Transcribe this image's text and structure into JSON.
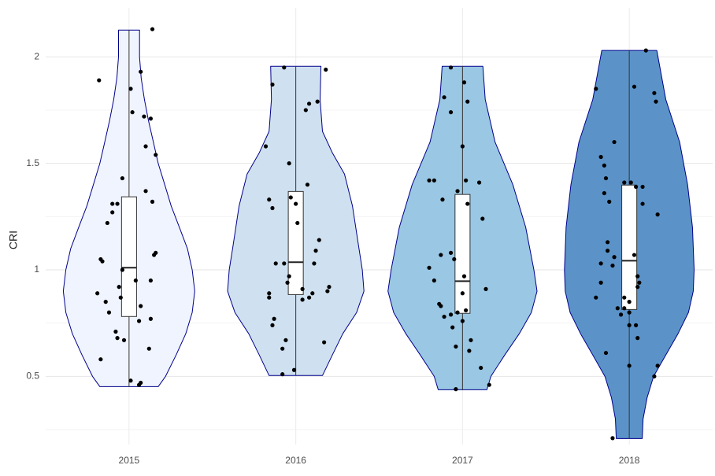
{
  "chart_data": {
    "type": "violin",
    "y_label": "CRI",
    "categories": [
      "2015",
      "2016",
      "2017",
      "2018"
    ],
    "ylim": [
      0.18,
      2.23
    ],
    "yticks": [
      0.5,
      1.0,
      1.5,
      2.0
    ],
    "minor_yticks": [
      0.25,
      0.75,
      1.25,
      1.75
    ],
    "grid": true,
    "outline_color": "#00008b",
    "box_fill": "#ffffff",
    "box_width": 0.09,
    "point_color": "#000000",
    "groups": [
      {
        "fill": "#f0f4fe",
        "violin": {
          "y": [
            0.452,
            0.5,
            0.6,
            0.7,
            0.8,
            0.9,
            1.0,
            1.1,
            1.2,
            1.3,
            1.4,
            1.5,
            1.6,
            1.7,
            1.8,
            1.9,
            2.0,
            2.126
          ],
          "width": [
            0.175,
            0.219,
            0.282,
            0.34,
            0.379,
            0.394,
            0.379,
            0.35,
            0.302,
            0.253,
            0.214,
            0.175,
            0.146,
            0.117,
            0.092,
            0.073,
            0.063,
            0.063
          ]
        },
        "box": {
          "min": 0.452,
          "q1": 0.781,
          "median": 1.01,
          "q3": 1.343,
          "max": 2.126
        },
        "points": {
          "x": [
            -0.18,
            0.14,
            0.07,
            0.01,
            0.02,
            0.09,
            0.13,
            0.1,
            0.16,
            -0.04,
            0.1,
            -0.1,
            -0.07,
            0.14,
            -0.1,
            -0.13,
            -0.17,
            -0.16,
            0.16,
            0.15,
            -0.04,
            0.13,
            0.04,
            -0.06,
            -0.19,
            -0.14,
            -0.05,
            0.07,
            -0.12,
            0.13,
            0.06,
            -0.08,
            -0.07,
            -0.03,
            0.12,
            -0.17,
            0.01,
            0.06,
            0.07
          ],
          "y": [
            1.89,
            2.13,
            1.93,
            1.85,
            1.74,
            1.72,
            1.71,
            1.58,
            1.54,
            1.43,
            1.37,
            1.31,
            1.31,
            1.32,
            1.27,
            1.22,
            1.05,
            1.04,
            1.08,
            1.07,
            1.0,
            0.95,
            0.95,
            0.92,
            0.89,
            0.85,
            0.87,
            0.83,
            0.8,
            0.77,
            0.76,
            0.71,
            0.68,
            0.67,
            0.63,
            0.58,
            0.48,
            0.46,
            0.47
          ]
        }
      },
      {
        "fill": "#cfe1f0",
        "violin": {
          "y": [
            0.504,
            0.6,
            0.7,
            0.8,
            0.9,
            1.0,
            1.1,
            1.3,
            1.45,
            1.55,
            1.65,
            1.8,
            1.956
          ],
          "width": [
            0.16,
            0.219,
            0.282,
            0.365,
            0.409,
            0.399,
            0.379,
            0.34,
            0.292,
            0.219,
            0.16,
            0.146,
            0.151
          ]
        },
        "box": {
          "min": 0.504,
          "q1": 0.884,
          "median": 1.036,
          "q3": 1.368,
          "max": 1.956
        },
        "points": {
          "x": [
            -0.07,
            0.18,
            -0.14,
            0.13,
            0.08,
            0.06,
            -0.18,
            -0.04,
            0.07,
            -0.16,
            -0.14,
            -0.03,
            0.0,
            0.01,
            0.14,
            0.12,
            -0.12,
            -0.07,
            0.11,
            -0.04,
            -0.05,
            0.2,
            0.19,
            -0.16,
            -0.16,
            0.1,
            0.04,
            0.04,
            0.08,
            -0.13,
            -0.14,
            -0.06,
            0.17,
            -0.08,
            -0.01,
            -0.08
          ],
          "y": [
            1.95,
            1.94,
            1.87,
            1.79,
            1.78,
            1.75,
            1.58,
            1.5,
            1.4,
            1.33,
            1.29,
            1.34,
            1.31,
            1.22,
            1.14,
            1.09,
            1.03,
            1.03,
            1.03,
            0.97,
            0.94,
            0.92,
            0.9,
            0.89,
            0.87,
            0.89,
            0.91,
            0.86,
            0.87,
            0.77,
            0.74,
            0.67,
            0.66,
            0.63,
            0.53,
            0.51
          ]
        }
      },
      {
        "fill": "#9ac7e3",
        "violin": {
          "y": [
            0.437,
            0.5,
            0.6,
            0.7,
            0.8,
            0.9,
            1.0,
            1.2,
            1.4,
            1.6,
            1.8,
            1.956
          ],
          "width": [
            0.146,
            0.17,
            0.253,
            0.34,
            0.413,
            0.447,
            0.428,
            0.379,
            0.302,
            0.195,
            0.136,
            0.122
          ]
        },
        "box": {
          "min": 0.437,
          "q1": 0.796,
          "median": 0.947,
          "q3": 1.354,
          "max": 1.956
        },
        "points": {
          "x": [
            -0.07,
            0.01,
            -0.11,
            0.03,
            -0.07,
            0.0,
            -0.2,
            -0.17,
            0.02,
            0.1,
            -0.03,
            -0.12,
            0.03,
            0.12,
            -0.13,
            -0.07,
            -0.05,
            0.01,
            -0.17,
            -0.2,
            0.0,
            0.14,
            -0.14,
            -0.13,
            0.02,
            -0.03,
            -0.07,
            -0.11,
            0.0,
            -0.06,
            0.05,
            0.04,
            -0.04,
            0.11,
            0.16,
            -0.04
          ],
          "y": [
            1.95,
            1.88,
            1.81,
            1.79,
            1.74,
            1.58,
            1.42,
            1.42,
            1.42,
            1.41,
            1.37,
            1.33,
            1.31,
            1.24,
            1.07,
            1.08,
            1.05,
            0.97,
            0.95,
            1.01,
            0.89,
            0.91,
            0.84,
            0.83,
            0.81,
            0.8,
            0.79,
            0.78,
            0.76,
            0.73,
            0.67,
            0.62,
            0.64,
            0.54,
            0.46,
            0.44
          ]
        }
      },
      {
        "fill": "#5b93c8",
        "violin": {
          "y": [
            0.208,
            0.3,
            0.4,
            0.5,
            0.6,
            0.7,
            0.8,
            0.9,
            1.0,
            1.2,
            1.4,
            1.6,
            1.8,
            2.03
          ],
          "width": [
            0.078,
            0.083,
            0.107,
            0.146,
            0.219,
            0.292,
            0.355,
            0.384,
            0.389,
            0.379,
            0.35,
            0.302,
            0.219,
            0.165
          ]
        },
        "box": {
          "min": 0.208,
          "q1": 0.814,
          "median": 1.043,
          "q3": 1.398,
          "max": 2.03
        },
        "points": {
          "x": [
            0.1,
            -0.2,
            0.03,
            0.15,
            0.16,
            -0.09,
            -0.17,
            -0.15,
            -0.14,
            -0.15,
            -0.03,
            0.01,
            0.04,
            0.08,
            -0.12,
            0.08,
            0.17,
            -0.13,
            -0.13,
            -0.09,
            0.03,
            -0.17,
            -0.1,
            0.05,
            0.06,
            -0.17,
            0.05,
            -0.2,
            -0.03,
            0.0,
            -0.07,
            -0.03,
            -0.05,
            0.0,
            0.0,
            0.04,
            0.05,
            -0.14,
            0.0,
            0.17,
            0.15,
            -0.1
          ],
          "y": [
            2.03,
            1.85,
            1.86,
            1.83,
            1.79,
            1.6,
            1.53,
            1.49,
            1.43,
            1.36,
            1.41,
            1.41,
            1.39,
            1.39,
            1.32,
            1.31,
            1.26,
            1.13,
            1.09,
            1.06,
            1.07,
            1.03,
            1.02,
            0.97,
            0.94,
            0.94,
            0.92,
            0.87,
            0.87,
            0.85,
            0.82,
            0.82,
            0.79,
            0.8,
            0.74,
            0.74,
            0.68,
            0.61,
            0.55,
            0.55,
            0.5,
            0.21
          ]
        }
      }
    ]
  }
}
